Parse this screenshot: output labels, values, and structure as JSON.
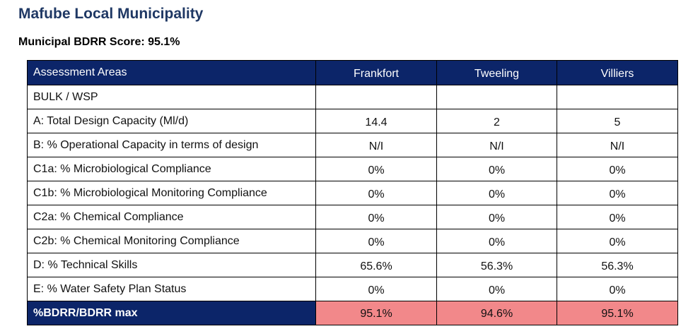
{
  "title": "Mafube Local Municipality",
  "score_line": "Municipal BDRR Score: 95.1%",
  "table": {
    "headers": [
      "Assessment Areas",
      "Frankfort",
      "Tweeling",
      "Villiers"
    ],
    "rows": [
      {
        "label": "BULK / WSP",
        "values": [
          "",
          "",
          ""
        ]
      },
      {
        "label": "A: Total Design Capacity (Ml/d)",
        "values": [
          "14.4",
          "2",
          "5"
        ]
      },
      {
        "label": "B: % Operational Capacity in terms of design",
        "values": [
          "N/I",
          "N/I",
          "N/I"
        ]
      },
      {
        "label": "C1a: % Microbiological Compliance",
        "values": [
          "0%",
          "0%",
          "0%"
        ]
      },
      {
        "label": "C1b: % Microbiological Monitoring Compliance",
        "values": [
          "0%",
          "0%",
          "0%"
        ]
      },
      {
        "label": "C2a: % Chemical Compliance",
        "values": [
          "0%",
          "0%",
          "0%"
        ]
      },
      {
        "label": "C2b: % Chemical Monitoring Compliance",
        "values": [
          "0%",
          "0%",
          "0%"
        ]
      },
      {
        "label": "D: % Technical Skills",
        "values": [
          "65.6%",
          "56.3%",
          "56.3%"
        ]
      },
      {
        "label": "E: % Water Safety Plan Status",
        "values": [
          "0%",
          "0%",
          "0%"
        ]
      }
    ],
    "total": {
      "label": "%BDRR/BDRR max",
      "values": [
        "95.1%",
        "94.6%",
        "95.1%"
      ]
    }
  },
  "colors": {
    "title": "#1f3864",
    "header_bg": "#0c2569",
    "header_text": "#ffffff",
    "total_highlight": "#f2888a"
  }
}
